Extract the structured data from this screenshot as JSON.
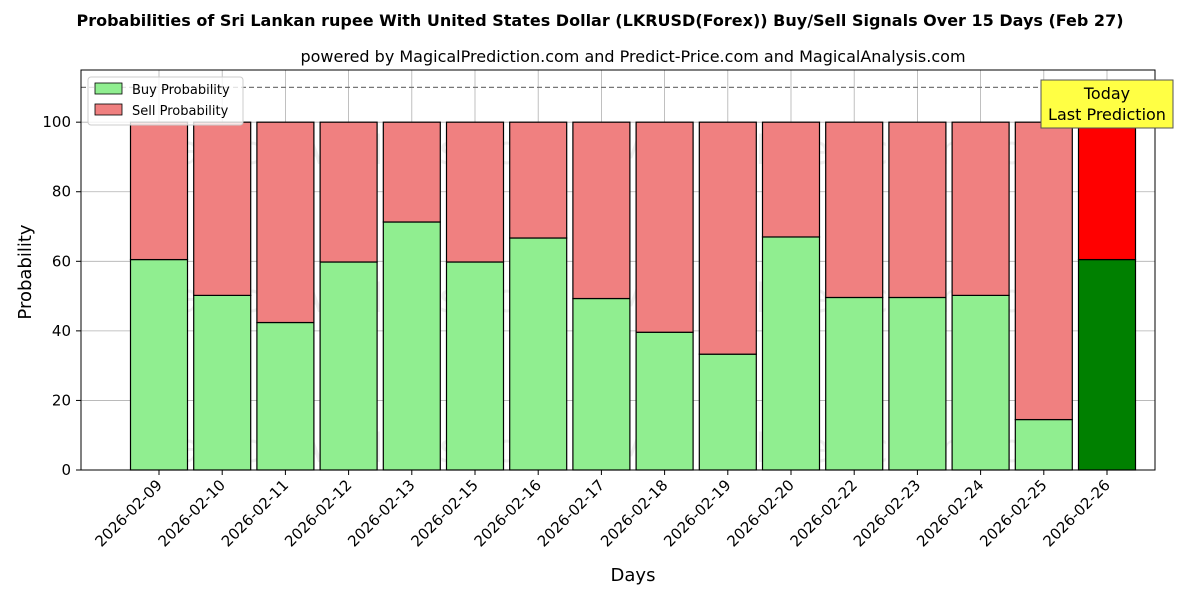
{
  "chart_data": {
    "type": "bar",
    "stacked": true,
    "title": "Probabilities of Sri Lankan rupee With United States Dollar (LKRUSD(Forex)) Buy/Sell Signals Over 15 Days (Feb 27)",
    "subtitle": "powered by MagicalPrediction.com and Predict-Price.com and MagicalAnalysis.com",
    "xlabel": "Days",
    "ylabel": "Probability",
    "ylim": [
      0,
      115
    ],
    "yticks": [
      0,
      20,
      40,
      60,
      80,
      100
    ],
    "grid": true,
    "legend_position": "top-left",
    "reference_line": 110,
    "categories": [
      "2026-02-09",
      "2026-02-10",
      "2026-02-11",
      "2026-02-12",
      "2026-02-13",
      "2026-02-15",
      "2026-02-16",
      "2026-02-17",
      "2026-02-18",
      "2026-02-19",
      "2026-02-20",
      "2026-02-22",
      "2026-02-23",
      "2026-02-24",
      "2026-02-25",
      "2026-02-26"
    ],
    "series": [
      {
        "name": "Buy Probability",
        "color": "#90ee90",
        "highlight_color": "#008000",
        "values": [
          60.5,
          50.2,
          42.4,
          59.8,
          71.3,
          59.8,
          66.7,
          49.3,
          39.6,
          33.3,
          67.0,
          49.6,
          49.6,
          50.2,
          14.5,
          60.5
        ]
      },
      {
        "name": "Sell Probability",
        "color": "#f08080",
        "highlight_color": "#ff0000",
        "values": [
          39.5,
          49.8,
          57.6,
          40.2,
          28.7,
          40.2,
          33.3,
          50.7,
          60.4,
          66.7,
          33.0,
          50.4,
          50.4,
          49.8,
          85.5,
          39.5
        ]
      }
    ],
    "annotation": {
      "line1": "Today",
      "line2": "Last Prediction",
      "color": "#ffff44"
    },
    "watermarks": [
      "MagicalAnalysis.com",
      "MagicalPrediction.com"
    ]
  }
}
